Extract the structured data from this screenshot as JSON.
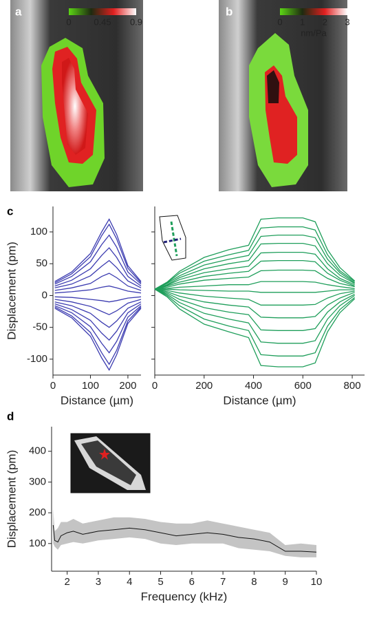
{
  "chart_data": [
    {
      "type": "colorbar",
      "panel": "a",
      "colors": [
        "#5cd615",
        "#1e2a10",
        "#e02020",
        "#ffffff"
      ],
      "xlim": [
        0,
        0.9
      ],
      "xticks": [
        0,
        0.45,
        0.9
      ]
    },
    {
      "type": "colorbar",
      "panel": "b",
      "colors": [
        "#5cd615",
        "#1e2a10",
        "#e02020",
        "#ffffff"
      ],
      "xlim": [
        0,
        3
      ],
      "xticks": [
        0,
        1,
        2,
        3
      ],
      "label": "nm/Pa"
    },
    {
      "type": "line",
      "panel": "c",
      "ylabel": "Displacement (pm)",
      "xlabel": "Distance (µm)",
      "x": [
        5,
        50,
        100,
        130,
        150,
        170,
        200,
        235
      ],
      "xlim": [
        0,
        235
      ],
      "ylim": [
        -125,
        140
      ],
      "xticks": [
        0,
        100,
        200
      ],
      "yticks": [
        -100,
        -50,
        0,
        50,
        100
      ],
      "ytick_labels": true,
      "series": [
        {
          "color": "#3b3bb0",
          "values": [
            22,
            37,
            66,
            100,
            120,
            96,
            47,
            22
          ]
        },
        {
          "color": "#3b3bb0",
          "values": [
            20,
            34,
            61,
            94,
            112,
            89,
            43,
            20
          ]
        },
        {
          "color": "#3b3bb0",
          "values": [
            18,
            30,
            53,
            80,
            95,
            76,
            37,
            18
          ]
        },
        {
          "color": "#3b3bb0",
          "values": [
            15,
            24,
            42,
            63,
            75,
            60,
            30,
            15
          ]
        },
        {
          "color": "#3b3bb0",
          "values": [
            12,
            18,
            31,
            46,
            55,
            44,
            23,
            12
          ]
        },
        {
          "color": "#3b3bb0",
          "values": [
            8,
            12,
            19,
            30,
            35,
            28,
            15,
            8
          ]
        },
        {
          "color": "#3b3bb0",
          "values": [
            4,
            6,
            9,
            13,
            15,
            12,
            7,
            4
          ]
        },
        {
          "color": "#3b3bb0",
          "values": [
            -2,
            -3,
            -6,
            -8,
            -10,
            -8,
            -4,
            -2
          ]
        },
        {
          "color": "#3b3bb0",
          "values": [
            -6,
            -10,
            -17,
            -25,
            -30,
            -24,
            -12,
            -6
          ]
        },
        {
          "color": "#3b3bb0",
          "values": [
            -10,
            -16,
            -28,
            -42,
            -50,
            -40,
            -20,
            -10
          ]
        },
        {
          "color": "#3b3bb0",
          "values": [
            -13,
            -22,
            -39,
            -59,
            -70,
            -56,
            -27,
            -13
          ]
        },
        {
          "color": "#3b3bb0",
          "values": [
            -16,
            -27,
            -49,
            -75,
            -90,
            -72,
            -34,
            -16
          ]
        },
        {
          "color": "#3b3bb0",
          "values": [
            -18,
            -32,
            -58,
            -90,
            -108,
            -86,
            -40,
            -18
          ]
        },
        {
          "color": "#3b3bb0",
          "values": [
            -20,
            -35,
            -64,
            -98,
            -117,
            -93,
            -44,
            -20
          ]
        }
      ]
    },
    {
      "type": "line",
      "xlabel": "Distance (µm)",
      "x": [
        0,
        50,
        100,
        200,
        300,
        380,
        430,
        500,
        600,
        650,
        700,
        750,
        810
      ],
      "xlim": [
        0,
        850
      ],
      "ylim": [
        -125,
        140
      ],
      "xticks": [
        0,
        200,
        400,
        600,
        800
      ],
      "yticks": [
        -100,
        -50,
        0,
        50,
        100
      ],
      "ytick_labels": false,
      "series": [
        {
          "color": "#1e9e5a",
          "values": [
            10,
            21,
            38,
            60,
            72,
            79,
            120,
            122,
            122,
            116,
            72,
            44,
            23
          ]
        },
        {
          "color": "#1e9e5a",
          "values": [
            10,
            20,
            35,
            54,
            64,
            71,
            106,
            108,
            108,
            103,
            64,
            39,
            22
          ]
        },
        {
          "color": "#1e9e5a",
          "values": [
            10,
            19,
            31,
            48,
            57,
            63,
            93,
            95,
            95,
            91,
            57,
            36,
            20
          ]
        },
        {
          "color": "#1e9e5a",
          "values": [
            10,
            17,
            28,
            42,
            50,
            55,
            81,
            82,
            82,
            78,
            50,
            32,
            19
          ]
        },
        {
          "color": "#1e9e5a",
          "values": [
            10,
            16,
            25,
            36,
            42,
            46,
            67,
            68,
            68,
            65,
            42,
            27,
            17
          ]
        },
        {
          "color": "#1e9e5a",
          "values": [
            10,
            15,
            21,
            30,
            35,
            38,
            54,
            55,
            55,
            53,
            35,
            24,
            15
          ]
        },
        {
          "color": "#1e9e5a",
          "values": [
            10,
            13,
            18,
            24,
            27,
            29,
            39,
            40,
            40,
            39,
            27,
            19,
            14
          ]
        },
        {
          "color": "#1e9e5a",
          "values": [
            10,
            11,
            13,
            15,
            17,
            17,
            22,
            22,
            22,
            21,
            17,
            14,
            11
          ]
        },
        {
          "color": "#1e9e5a",
          "values": [
            10,
            10,
            9,
            8,
            7,
            7,
            5,
            5,
            5,
            5,
            7,
            9,
            9
          ]
        },
        {
          "color": "#1e9e5a",
          "values": [
            10,
            8,
            4,
            -1,
            -4,
            -6,
            -15,
            -15,
            -15,
            -14,
            -4,
            3,
            7
          ]
        },
        {
          "color": "#1e9e5a",
          "values": [
            10,
            6,
            -1,
            -10,
            -15,
            -18,
            -34,
            -35,
            -35,
            -33,
            -15,
            -4,
            5
          ]
        },
        {
          "color": "#1e9e5a",
          "values": [
            10,
            4,
            -6,
            -19,
            -26,
            -30,
            -54,
            -55,
            -55,
            -52,
            -26,
            -10,
            2
          ]
        },
        {
          "color": "#1e9e5a",
          "values": [
            10,
            2,
            -11,
            -28,
            -37,
            -43,
            -73,
            -75,
            -75,
            -71,
            -37,
            -16,
            0
          ]
        },
        {
          "color": "#1e9e5a",
          "values": [
            10,
            0,
            -16,
            -37,
            -48,
            -55,
            -93,
            -95,
            -95,
            -90,
            -48,
            -22,
            -3
          ]
        },
        {
          "color": "#1e9e5a",
          "values": [
            10,
            -2,
            -21,
            -45,
            -57,
            -66,
            -110,
            -112,
            -112,
            -106,
            -57,
            -27,
            -5
          ]
        }
      ]
    },
    {
      "type": "band",
      "panel": "d",
      "ylabel": "Displacement (pm)",
      "xlabel": "Frequency (kHz)",
      "x": [
        1.55,
        1.6,
        1.7,
        1.8,
        2,
        2.2,
        2.5,
        3,
        3.5,
        4,
        4.5,
        5,
        5.5,
        6,
        6.5,
        7,
        7.5,
        8,
        8.5,
        9,
        9.5,
        10
      ],
      "xlim": [
        1.5,
        10
      ],
      "ylim": [
        10,
        480
      ],
      "xticks": [
        2,
        3,
        4,
        5,
        6,
        7,
        8,
        9,
        10
      ],
      "yticks": [
        100,
        200,
        300,
        400
      ],
      "ytick_labels": true,
      "series": [
        {
          "color": "#111111",
          "band_color": "#c4c4c4",
          "values": [
            160,
            110,
            105,
            125,
            135,
            140,
            130,
            140,
            145,
            150,
            145,
            135,
            125,
            130,
            135,
            130,
            120,
            115,
            105,
            75,
            75,
            72
          ],
          "lower": [
            100,
            90,
            80,
            95,
            100,
            105,
            100,
            110,
            115,
            120,
            115,
            100,
            95,
            100,
            100,
            100,
            85,
            80,
            75,
            60,
            55,
            55
          ],
          "upper": [
            215,
            140,
            150,
            170,
            170,
            180,
            165,
            175,
            185,
            185,
            180,
            170,
            165,
            165,
            175,
            165,
            155,
            145,
            135,
            95,
            100,
            95
          ]
        }
      ]
    }
  ]
}
